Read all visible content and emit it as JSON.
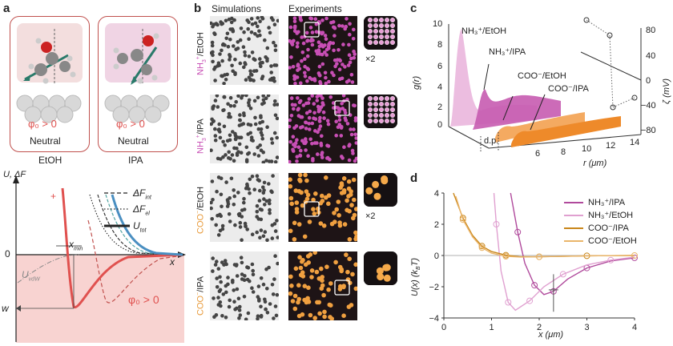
{
  "panels": {
    "a": "a",
    "b": "b",
    "c": "c",
    "d": "d"
  },
  "panel_a": {
    "solvents": [
      "EtOH",
      "IPA"
    ],
    "phi_label": "φ₀ > 0",
    "neutral_label": "Neutral",
    "y_axis": "U, ΔF",
    "x_axis": "x",
    "zero": "0",
    "w": "w",
    "xmin": "x",
    "xmin_sub": "min",
    "uvdw": "U",
    "uvdw_sub": "vdW",
    "plus": "+",
    "minus": "−",
    "legend": [
      {
        "label": "ΔF",
        "sub": "int",
        "style": "dashed"
      },
      {
        "label": "ΔF",
        "sub": "el",
        "style": "dotted"
      },
      {
        "label": "U",
        "sub": "tot",
        "style": "solid"
      }
    ],
    "colors": {
      "red": "#e0514f",
      "blue": "#4a8fc1",
      "teal": "#4fa3a0",
      "pink_bg": "#f8d3d1"
    }
  },
  "panel_b": {
    "col_titles": [
      "Simulations",
      "Experiments"
    ],
    "rows": [
      {
        "ion": "NH",
        "ion_sup": "+",
        "ion_sub": "3",
        "solvent": "/EtOH",
        "color": "#c84fb5",
        "zoom_color": "#e7a0d6",
        "scale": "×2"
      },
      {
        "ion": "NH",
        "ion_sup": "+",
        "ion_sub": "3",
        "solvent": "/IPA",
        "color": "#c84fb5",
        "zoom_color": "#e7a0d6",
        "scale": ""
      },
      {
        "ion": "COO",
        "ion_sup": "−",
        "ion_sub": "",
        "solvent": "/EtOH",
        "color": "#f0a040",
        "zoom_color": "#f5a94a",
        "scale": "×2"
      },
      {
        "ion": "COO",
        "ion_sup": "−",
        "ion_sub": "",
        "solvent": "/IPA",
        "color": "#f0a040",
        "zoom_color": "#f5a94a",
        "scale": ""
      }
    ]
  },
  "panel_c": {
    "y_label": "g(r)",
    "x_label": "r (μm)",
    "z_label": "ζ (mV)",
    "y_ticks": [
      "10",
      "8",
      "6",
      "4",
      "2",
      "0"
    ],
    "x_ticks": [
      "6",
      "8",
      "10",
      "12",
      "14"
    ],
    "z_ticks": [
      "80",
      "40",
      "0",
      "−40",
      "−80"
    ],
    "dp": "d.p.",
    "series": [
      {
        "name": "NH₃⁺/EtOH",
        "color": "#d98cc4"
      },
      {
        "name": "NH₃⁺/IPA",
        "color": "#b04a9c"
      },
      {
        "name": "COO⁻/EtOH",
        "color": "#f3a558"
      },
      {
        "name": "COO⁻/IPA",
        "color": "#ee8a2a"
      }
    ]
  },
  "panel_d": {
    "y_label": "U(x) (k",
    "y_label_sub": "B",
    "y_label_end": "T)",
    "x_label": "x (μm)",
    "legend": [
      {
        "name": "NH₃⁺/IPA",
        "color": "#b04a9c"
      },
      {
        "name": "NH₃⁺/EtOH",
        "color": "#e0a0d0"
      },
      {
        "name": "COO⁻/IPA",
        "color": "#c8861a"
      },
      {
        "name": "COO⁻/EtOH",
        "color": "#eab56a"
      }
    ]
  },
  "chart_data": {
    "type": "line",
    "xlabel": "x (μm)",
    "ylabel": "U(x) (kBT)",
    "xlim": [
      0,
      4
    ],
    "ylim": [
      -4,
      4
    ],
    "x_ticks": [
      0,
      1,
      2,
      3,
      4
    ],
    "y_ticks": [
      -4,
      -2,
      0,
      2,
      4
    ],
    "series": [
      {
        "name": "NH₃⁺/IPA",
        "x": [
          1.4,
          1.55,
          1.7,
          1.9,
          2.1,
          2.3,
          2.6,
          3.0,
          3.5,
          4.0
        ],
        "values": [
          4,
          1.5,
          -0.5,
          -1.9,
          -2.5,
          -2.3,
          -1.5,
          -0.8,
          -0.35,
          -0.15
        ]
      },
      {
        "name": "NH₃⁺/EtOH",
        "x": [
          1.05,
          1.1,
          1.2,
          1.35,
          1.5,
          1.8,
          2.1,
          2.5,
          3.0,
          3.5,
          4.0
        ],
        "values": [
          4,
          2.0,
          -1.0,
          -3.0,
          -3.5,
          -2.9,
          -2.0,
          -1.2,
          -0.6,
          -0.3,
          -0.1
        ]
      },
      {
        "name": "COO⁻/IPA",
        "x": [
          0.2,
          0.4,
          0.6,
          0.8,
          1.0,
          1.3,
          1.6,
          2.0,
          2.5,
          3.0,
          4.0
        ],
        "values": [
          4,
          2.4,
          1.3,
          0.6,
          0.25,
          0.02,
          -0.08,
          -0.08,
          -0.05,
          -0.02,
          0
        ]
      },
      {
        "name": "COO⁻/EtOH",
        "x": [
          0.25,
          0.4,
          0.6,
          0.8,
          1.0,
          1.3,
          1.6,
          2.0,
          3.0,
          4.0
        ],
        "values": [
          3.8,
          2.3,
          1.2,
          0.5,
          0.15,
          -0.05,
          -0.1,
          -0.08,
          -0.02,
          0
        ]
      }
    ]
  }
}
